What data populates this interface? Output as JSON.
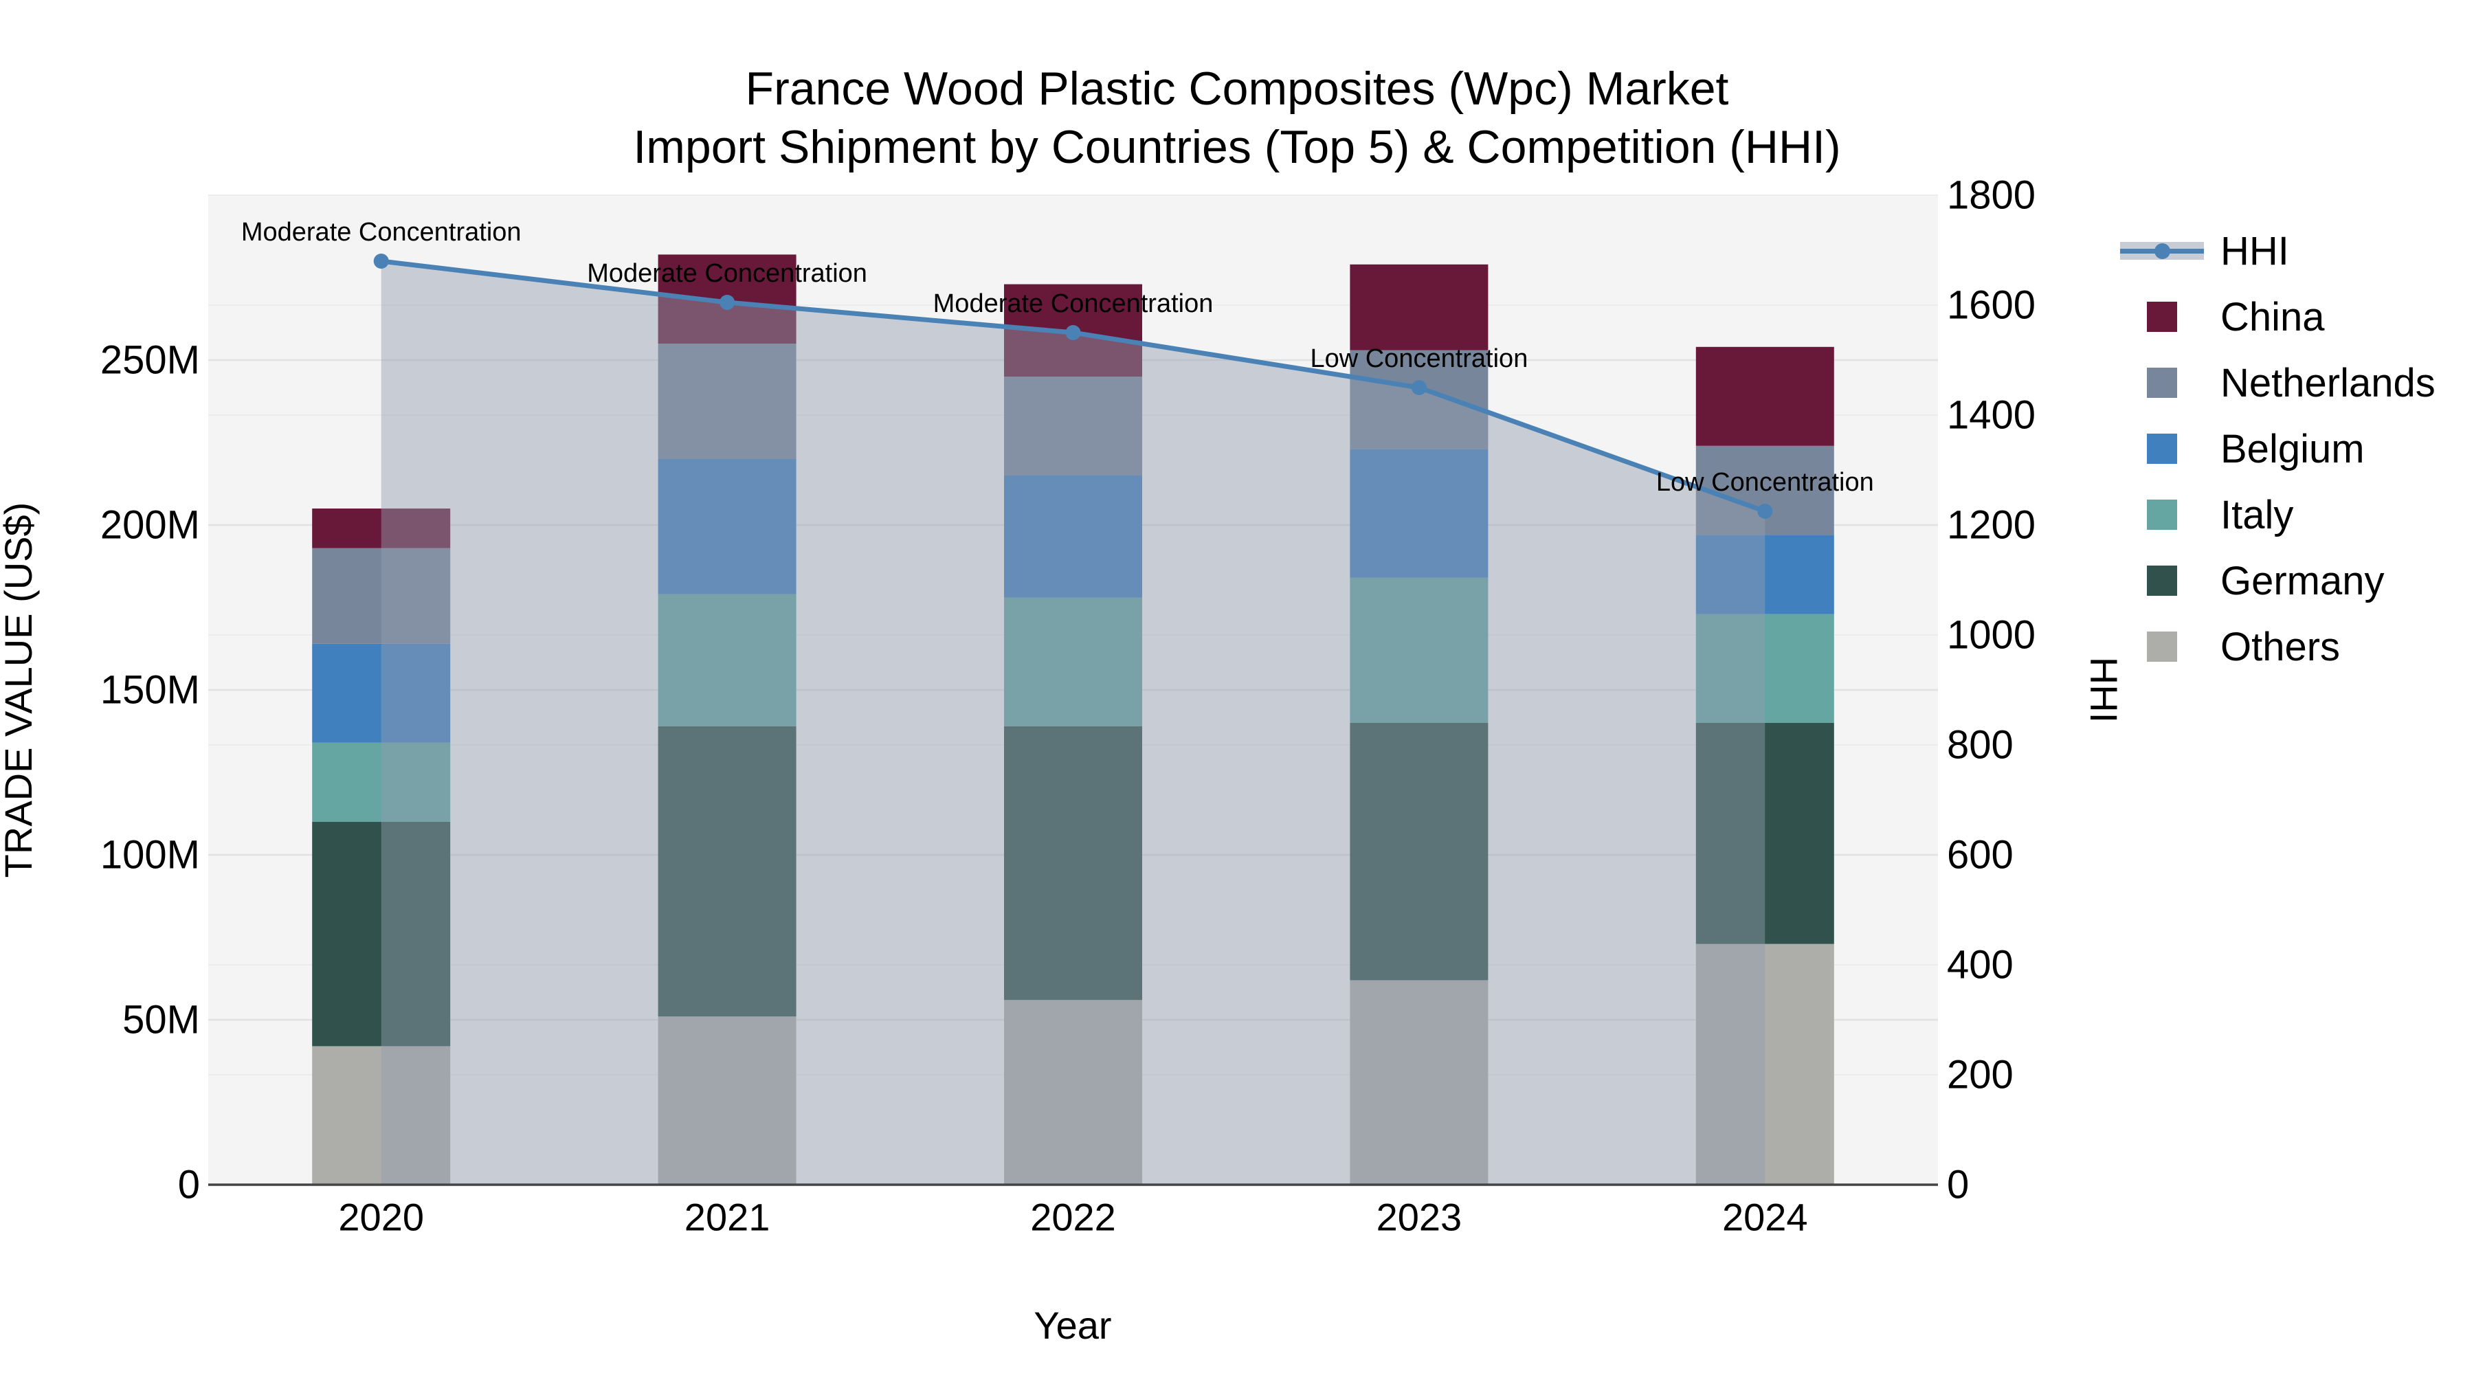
{
  "title": {
    "line1": "France Wood Plastic Composites (Wpc) Market",
    "line2": "Import Shipment by Countries (Top 5) & Competition (HHI)"
  },
  "axes": {
    "x_title": "Year",
    "y_left_title": "TRADE VALUE (US$)",
    "y_right_title": "HHI",
    "y_left_ticks": [
      {
        "label": "0",
        "value": 0
      },
      {
        "label": "50M",
        "value": 50
      },
      {
        "label": "100M",
        "value": 100
      },
      {
        "label": "150M",
        "value": 150
      },
      {
        "label": "200M",
        "value": 200
      },
      {
        "label": "250M",
        "value": 250
      }
    ],
    "y_left_range": [
      0,
      300
    ],
    "y_right_ticks": [
      {
        "label": "0",
        "value": 0
      },
      {
        "label": "200",
        "value": 200
      },
      {
        "label": "400",
        "value": 400
      },
      {
        "label": "600",
        "value": 600
      },
      {
        "label": "800",
        "value": 800
      },
      {
        "label": "1000",
        "value": 1000
      },
      {
        "label": "1200",
        "value": 1200
      },
      {
        "label": "1400",
        "value": 1400
      },
      {
        "label": "1600",
        "value": 1600
      },
      {
        "label": "1800",
        "value": 1800
      }
    ],
    "y_right_range": [
      0,
      1800
    ]
  },
  "chart_data": {
    "type": "bar",
    "subtype": "stacked-bars-with-line",
    "title": "France Wood Plastic Composites (Wpc) Market Import Shipment by Countries (Top 5) & Competition (HHI)",
    "xlabel": "Year",
    "ylabel": "TRADE VALUE (US$)",
    "ylabel_right": "HHI",
    "categories": [
      "2020",
      "2021",
      "2022",
      "2023",
      "2024"
    ],
    "bar_value_unit": "Million US$",
    "series": [
      {
        "name": "Others",
        "color": "#adadaa",
        "values": [
          42,
          51,
          56,
          62,
          73
        ]
      },
      {
        "name": "Germany",
        "color": "#30514c",
        "values": [
          68,
          88,
          83,
          78,
          67
        ]
      },
      {
        "name": "Italy",
        "color": "#65a5a2",
        "values": [
          24,
          40,
          39,
          44,
          33
        ]
      },
      {
        "name": "Belgium",
        "color": "#4080be",
        "values": [
          30,
          41,
          37,
          39,
          24
        ]
      },
      {
        "name": "Netherlands",
        "color": "#78869b",
        "values": [
          29,
          35,
          30,
          30,
          27
        ]
      },
      {
        "name": "China",
        "color": "#68193a",
        "values": [
          12,
          27,
          28,
          26,
          30
        ]
      }
    ],
    "line_series": {
      "name": "HHI",
      "axis": "right",
      "color": "#4a82b6",
      "area_fill": "rgba(146,157,175,0.45)",
      "values": [
        1680,
        1605,
        1550,
        1450,
        1225
      ]
    },
    "annotations": [
      {
        "category": "2020",
        "text": "Moderate Concentration"
      },
      {
        "category": "2021",
        "text": "Moderate Concentration"
      },
      {
        "category": "2022",
        "text": "Moderate Concentration"
      },
      {
        "category": "2023",
        "text": "Low Concentration"
      },
      {
        "category": "2024",
        "text": "Low Concentration"
      }
    ],
    "ylim_left": [
      0,
      300
    ],
    "ylim_right": [
      0,
      1800
    ],
    "grid": true,
    "legend_position": "right"
  },
  "legend": {
    "items": [
      {
        "name": "HHI",
        "type": "line",
        "color": "#4a82b6",
        "band_color": "#c8cdd5"
      },
      {
        "name": "China",
        "type": "swatch",
        "color": "#68193a"
      },
      {
        "name": "Netherlands",
        "type": "swatch",
        "color": "#78869b"
      },
      {
        "name": "Belgium",
        "type": "swatch",
        "color": "#4080be"
      },
      {
        "name": "Italy",
        "type": "swatch",
        "color": "#65a5a2"
      },
      {
        "name": "Germany",
        "type": "swatch",
        "color": "#30514c"
      },
      {
        "name": "Others",
        "type": "swatch",
        "color": "#adadaa"
      }
    ]
  },
  "colors": {
    "plot_bg": "#f4f4f4",
    "grid_major": "#e2e2e2",
    "grid_minor": "#ececec",
    "axis_line": "#444444",
    "text": "#000000"
  }
}
